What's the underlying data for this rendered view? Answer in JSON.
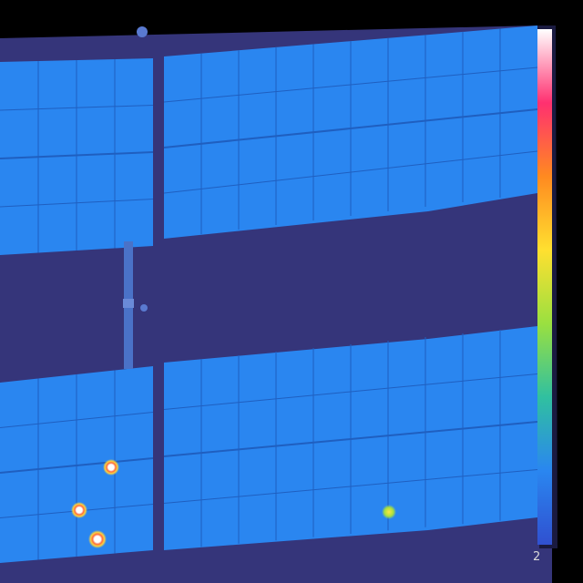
{
  "thermal_image": {
    "palette_colors": {
      "background": "#35357a",
      "panel_cell": "#2a86f0",
      "panel_cell_bright": "#3b96fa",
      "cell_gridline": "#1f5fc0",
      "hotspot_core": "#ffffff",
      "hotspot_ring": "#ffd23c"
    },
    "palette_bar": {
      "stops": [
        "#ffffff",
        "#ff3070",
        "#ff8a20",
        "#ffe030",
        "#9ae040",
        "#30c0a0",
        "#2a86f0",
        "#3050d0"
      ],
      "label_bottom": "2"
    },
    "hotspot_count": 4
  }
}
